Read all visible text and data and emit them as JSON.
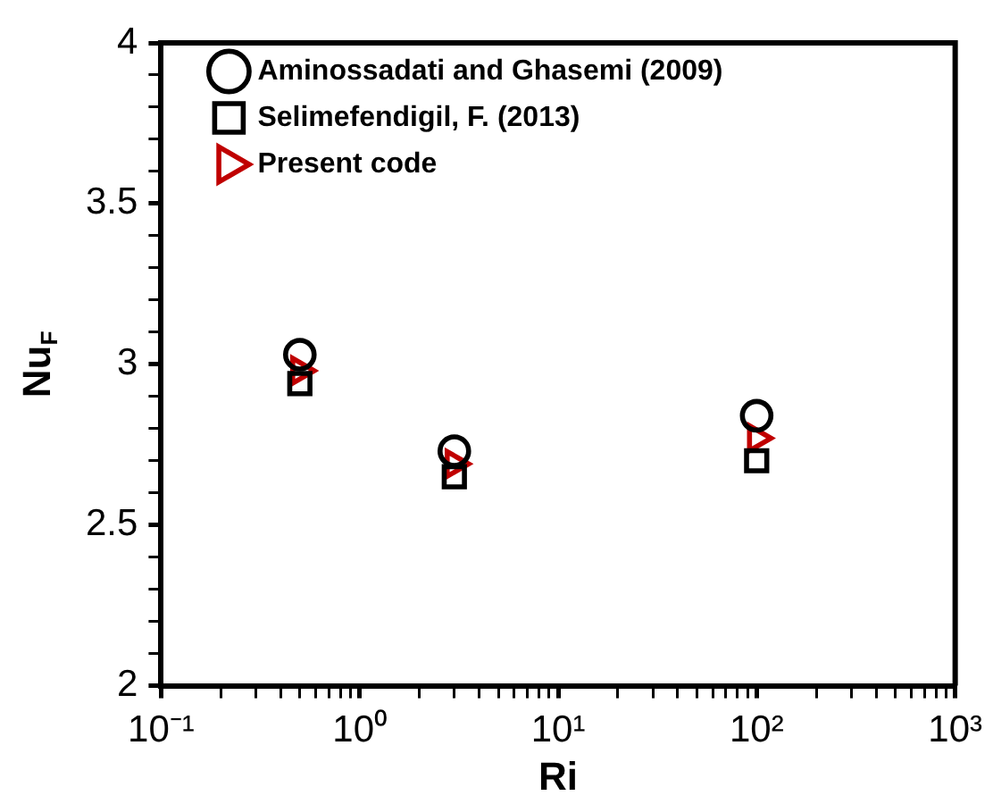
{
  "chart_data": {
    "type": "scatter",
    "xlabel": "Ri",
    "ylabel": "Nu$_{F}$",
    "log": "x",
    "x": [
      0.5,
      3,
      100
    ],
    "series": [
      {
        "name": "Aminossadati and Ghasemi (2009)",
        "color": "#000000",
        "marker": "circle",
        "values": [
          3.03,
          2.73,
          2.84
        ]
      },
      {
        "name": "Selimefendigil, F. (2013)",
        "color": "#000000",
        "marker": "square",
        "values": [
          2.94,
          2.65,
          2.7
        ]
      },
      {
        "name": "Present code",
        "color": "#c00000",
        "marker": "triangle",
        "values": [
          2.98,
          2.69,
          2.77
        ]
      }
    ],
    "xlim": [
      0.1,
      1000
    ],
    "xticks": [
      {
        "value": 0.1,
        "label": "10⁻¹"
      },
      {
        "value": 0.2,
        "label": null
      },
      {
        "value": 0.3,
        "label": null
      },
      {
        "value": 0.4,
        "label": null
      },
      {
        "value": 0.5,
        "label": null
      },
      {
        "value": 0.6,
        "label": null
      },
      {
        "value": 0.7,
        "label": null
      },
      {
        "value": 0.8,
        "label": null
      },
      {
        "value": 0.9,
        "label": null
      },
      {
        "value": 1,
        "label": "10⁰"
      },
      {
        "value": 2,
        "label": null
      },
      {
        "value": 3,
        "label": null
      },
      {
        "value": 4,
        "label": null
      },
      {
        "value": 5,
        "label": null
      },
      {
        "value": 6,
        "label": null
      },
      {
        "value": 7,
        "label": null
      },
      {
        "value": 8,
        "label": null
      },
      {
        "value": 9,
        "label": null
      },
      {
        "value": 10,
        "label": "10¹"
      },
      {
        "value": 20,
        "label": null
      },
      {
        "value": 30,
        "label": null
      },
      {
        "value": 40,
        "label": null
      },
      {
        "value": 50,
        "label": null
      },
      {
        "value": 60,
        "label": null
      },
      {
        "value": 70,
        "label": null
      },
      {
        "value": 80,
        "label": null
      },
      {
        "value": 90,
        "label": null
      },
      {
        "value": 100,
        "label": "10²"
      },
      {
        "value": 200,
        "label": null
      },
      {
        "value": 300,
        "label": null
      },
      {
        "value": 400,
        "label": null
      },
      {
        "value": 500,
        "label": null
      },
      {
        "value": 600,
        "label": null
      },
      {
        "value": 700,
        "label": null
      },
      {
        "value": 800,
        "label": null
      },
      {
        "value": 900,
        "label": null
      },
      {
        "value": 1000,
        "label": "10³"
      }
    ],
    "ylim": [
      2,
      4
    ],
    "yticks": [
      2,
      {
        "value": 2.1,
        "label": null
      },
      {
        "value": 2.2,
        "label": null
      },
      {
        "value": 2.3,
        "label": null
      },
      {
        "value": 2.4,
        "label": null
      },
      2.5,
      {
        "value": 2.6,
        "label": null
      },
      {
        "value": 2.7,
        "label": null
      },
      {
        "value": 2.8,
        "label": null
      },
      {
        "value": 2.9,
        "label": null
      },
      3,
      {
        "value": 3.1,
        "label": null
      },
      {
        "value": 3.2,
        "label": null
      },
      {
        "value": 3.3,
        "label": null
      },
      {
        "value": 3.4,
        "label": null
      },
      3.5,
      {
        "value": 3.6,
        "label": null
      },
      {
        "value": 3.7,
        "label": null
      },
      {
        "value": 3.8,
        "label": null
      },
      {
        "value": 3.9,
        "label": null
      },
      4
    ],
    "grid": false,
    "legend": "top left"
  }
}
